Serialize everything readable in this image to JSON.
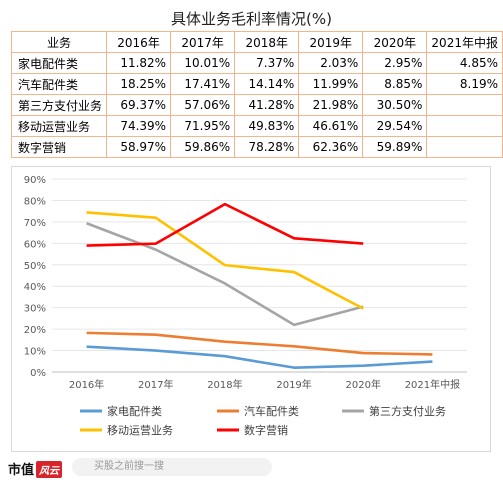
{
  "chart_data": {
    "type": "line",
    "title": "具体业务毛利率情况(%)",
    "categories": [
      "2016年",
      "2017年",
      "2018年",
      "2019年",
      "2020年",
      "2021年中报"
    ],
    "ylim": [
      0,
      90
    ],
    "yticks": [
      "0%",
      "10%",
      "20%",
      "30%",
      "40%",
      "50%",
      "60%",
      "70%",
      "80%",
      "90%"
    ],
    "grid": true,
    "legend_position": "bottom",
    "series": [
      {
        "name": "家电配件类",
        "color": "#5b9bd5",
        "values": [
          11.82,
          10.01,
          7.37,
          2.03,
          2.95,
          4.85
        ]
      },
      {
        "name": "汽车配件类",
        "color": "#ed7d31",
        "values": [
          18.25,
          17.41,
          14.14,
          11.99,
          8.85,
          8.19
        ]
      },
      {
        "name": "第三方支付业务",
        "color": "#a5a5a5",
        "values": [
          69.37,
          57.06,
          41.28,
          21.98,
          30.5,
          null
        ]
      },
      {
        "name": "移动运营业务",
        "color": "#ffc000",
        "values": [
          74.39,
          71.95,
          49.83,
          46.61,
          29.54,
          null
        ]
      },
      {
        "name": "数字营销",
        "color": "#ff0000",
        "values": [
          58.97,
          59.86,
          78.28,
          62.36,
          59.89,
          null
        ]
      }
    ]
  },
  "table": {
    "header": [
      "业务",
      "2016年",
      "2017年",
      "2018年",
      "2019年",
      "2020年",
      "2021年中报"
    ],
    "rows": [
      [
        "家电配件类",
        "11.82%",
        "10.01%",
        "7.37%",
        "2.03%",
        "2.95%",
        "4.85%"
      ],
      [
        "汽车配件类",
        "18.25%",
        "17.41%",
        "14.14%",
        "11.99%",
        "8.85%",
        "8.19%"
      ],
      [
        "第三方支付业务",
        "69.37%",
        "57.06%",
        "41.28%",
        "21.98%",
        "30.50%",
        ""
      ],
      [
        "移动运营业务",
        "74.39%",
        "71.95%",
        "49.83%",
        "46.61%",
        "29.54%",
        ""
      ],
      [
        "数字营销",
        "58.97%",
        "59.86%",
        "78.28%",
        "62.36%",
        "59.89%",
        ""
      ]
    ]
  },
  "footer": {
    "brand": "市值",
    "brand_badge": "风云",
    "search_placeholder": "买股之前搜一搜"
  }
}
